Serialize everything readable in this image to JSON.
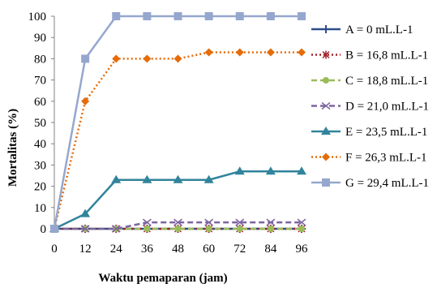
{
  "chart_data": {
    "type": "line",
    "title": "",
    "xlabel": "Waktu pemaparan (jam)",
    "ylabel": "Mortalitas (%)",
    "x": [
      0,
      12,
      24,
      36,
      48,
      60,
      72,
      84,
      96
    ],
    "xlim": [
      0,
      96
    ],
    "ylim": [
      0,
      100
    ],
    "yticks": [
      0,
      10,
      20,
      30,
      40,
      50,
      60,
      70,
      80,
      90,
      100
    ],
    "grid": false,
    "legend_position": "right",
    "series": [
      {
        "name": "A = 0 mL.L-1",
        "color": "#2E4D8A",
        "marker": "plus",
        "dash": "solid",
        "values": [
          0,
          0,
          0,
          0,
          0,
          0,
          0,
          0,
          0
        ]
      },
      {
        "name": "B = 16,8 mL.L-1",
        "color": "#A5222A",
        "marker": "asterisk",
        "dash": "dotted",
        "values": [
          0,
          0,
          0,
          0,
          0,
          0,
          0,
          0,
          0
        ]
      },
      {
        "name": "C = 18,8 mL.L-1",
        "color": "#9BBB59",
        "marker": "circle",
        "dash": "dashed",
        "values": [
          0,
          0,
          0,
          0,
          0,
          0,
          0,
          0,
          0
        ]
      },
      {
        "name": "D = 21,0 mL.L-1",
        "color": "#7E64A0",
        "marker": "x",
        "dash": "dashed",
        "values": [
          0,
          0,
          0,
          3,
          3,
          3,
          3,
          3,
          3
        ]
      },
      {
        "name": "E = 23,5 mL.L-1",
        "color": "#31849B",
        "marker": "triangle",
        "dash": "solid",
        "values": [
          0,
          7,
          23,
          23,
          23,
          23,
          27,
          27,
          27
        ]
      },
      {
        "name": "F = 26,3 mL.L-1",
        "color": "#E46C0A",
        "marker": "diamond",
        "dash": "dotted",
        "values": [
          0,
          60,
          80,
          80,
          80,
          83,
          83,
          83,
          83
        ]
      },
      {
        "name": "G = 29,4 mL.L-1",
        "color": "#95A7CE",
        "marker": "square",
        "dash": "solid",
        "values": [
          0,
          80,
          100,
          100,
          100,
          100,
          100,
          100,
          100
        ]
      }
    ]
  }
}
